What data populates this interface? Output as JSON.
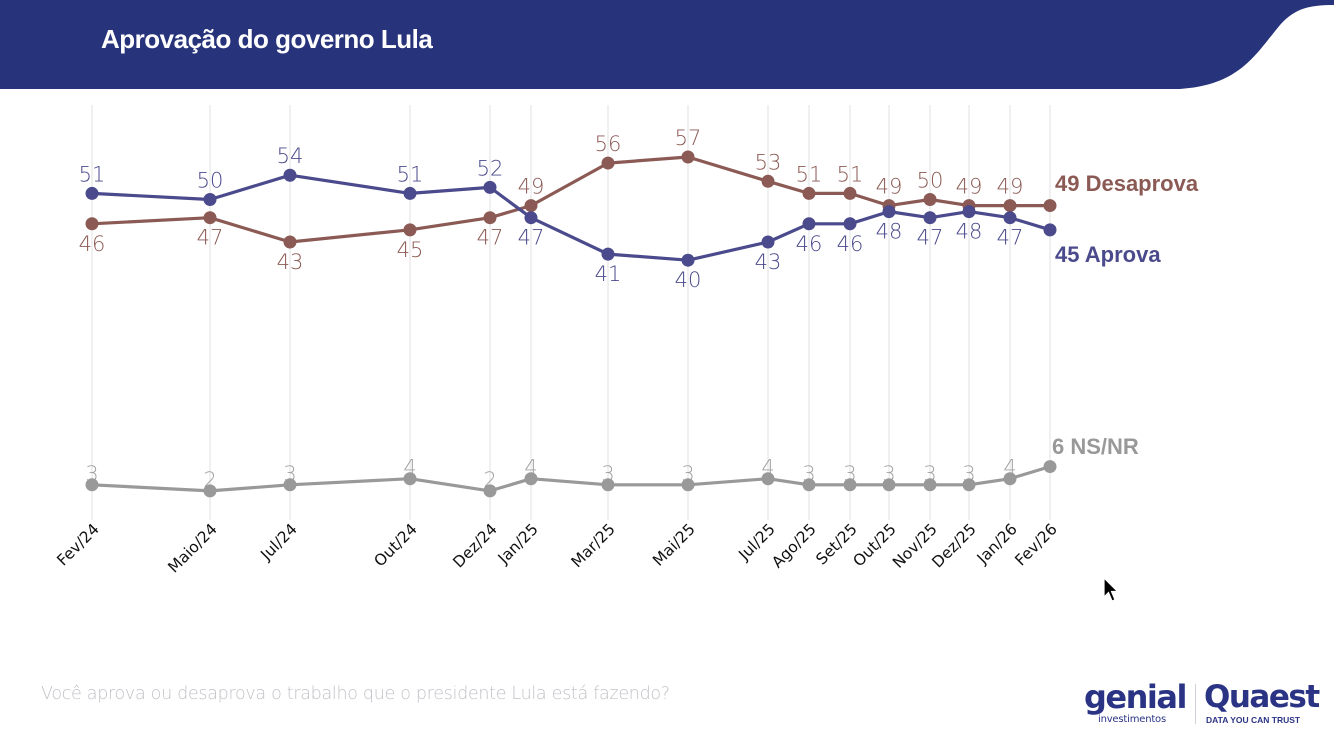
{
  "header": {
    "title": "Aprovação do governo Lula",
    "color": "#27337a"
  },
  "footer": {
    "question": "Você aprova ou desaprova o trabalho que o presidente Lula está fazendo?"
  },
  "logos": {
    "genial": "genial",
    "genial_sub": "investimentos",
    "quaest": "Quaest",
    "quaest_sub": "DATA YOU CAN TRUST"
  },
  "chart_data": {
    "type": "line",
    "title": "Aprovação do governo Lula",
    "xlabel": "",
    "ylabel": "",
    "grid": "vertical",
    "categories": [
      "Fev/24",
      "Maio/24",
      "Jul/24",
      "Out/24",
      "Dez/24",
      "Jan/25",
      "Mar/25",
      "Mai/25",
      "Jul/25",
      "Ago/25",
      "Set/25",
      "Out/25",
      "Nov/25",
      "Dez/25",
      "Jan/26",
      "Fev/26"
    ],
    "month_index": [
      0,
      3,
      5,
      8,
      10,
      11,
      13,
      15,
      17,
      18,
      19,
      20,
      21,
      22,
      23,
      24
    ],
    "series": [
      {
        "name": "Desaprova",
        "color": "#8b5a54",
        "end_label": "49 Desaprova",
        "values": [
          46,
          47,
          43,
          45,
          47,
          49,
          56,
          57,
          53,
          51,
          51,
          49,
          50,
          49,
          49,
          49
        ],
        "label_pos": [
          "below",
          "below",
          "below",
          "below",
          "below",
          "above",
          "above",
          "above",
          "above",
          "above",
          "above",
          "above",
          "above",
          "above",
          "above",
          "none"
        ]
      },
      {
        "name": "Aprova",
        "color": "#4a4a8c",
        "end_label": "45 Aprova",
        "values": [
          51,
          50,
          54,
          51,
          52,
          47,
          41,
          40,
          43,
          46,
          46,
          48,
          47,
          48,
          47,
          45
        ],
        "label_pos": [
          "above",
          "above",
          "above",
          "above",
          "above",
          "below",
          "below",
          "below",
          "below",
          "below",
          "below",
          "below",
          "below",
          "below",
          "below",
          "none"
        ]
      },
      {
        "name": "NS/NR",
        "color": "#999999",
        "end_label": "6 NS/NR",
        "values": [
          3,
          2,
          3,
          4,
          2,
          4,
          3,
          3,
          4,
          3,
          3,
          3,
          3,
          3,
          4,
          6
        ],
        "label_pos": [
          "above",
          "above",
          "above",
          "above",
          "above",
          "above",
          "above",
          "above",
          "above",
          "above",
          "above",
          "above",
          "above",
          "above",
          "above",
          "none"
        ]
      }
    ],
    "ylim": [
      0,
      60
    ],
    "legend": "right-end-labels"
  }
}
